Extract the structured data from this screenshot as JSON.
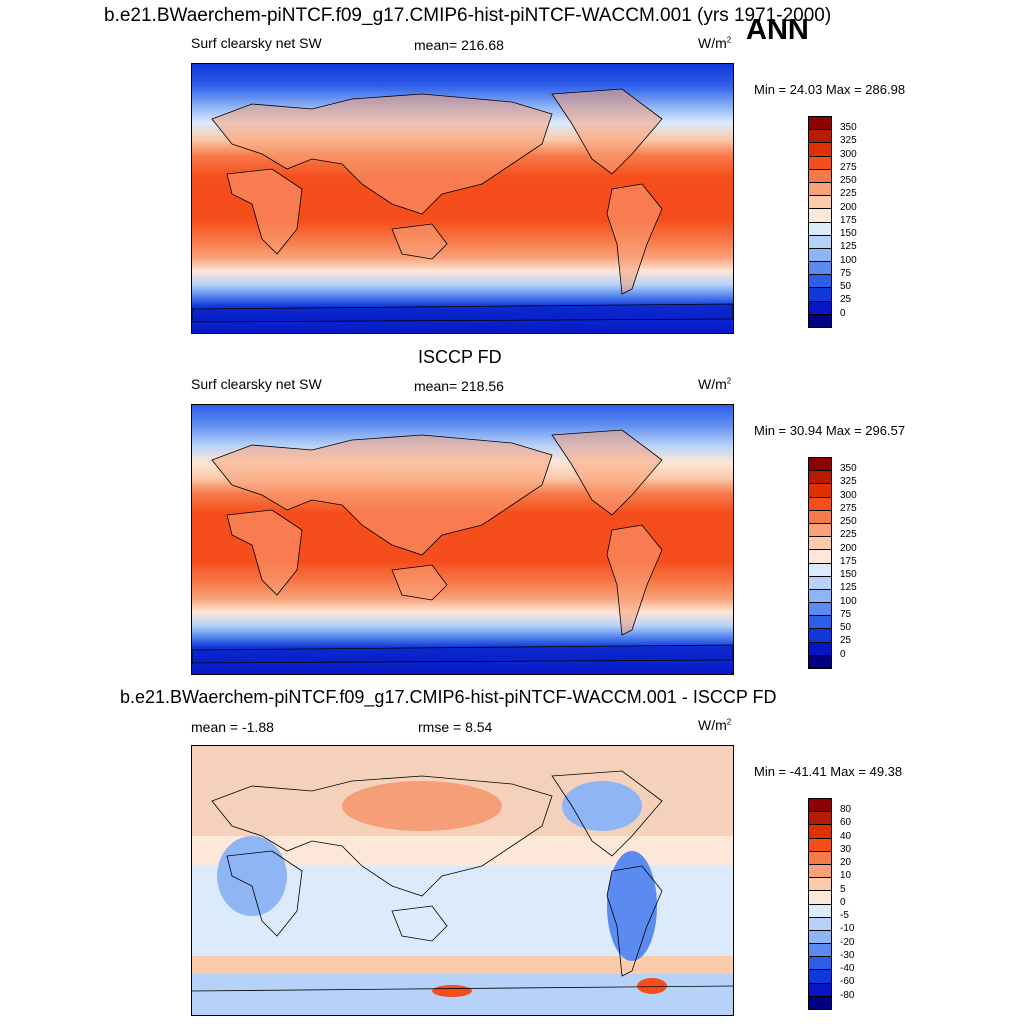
{
  "figure": {
    "title": "b.e21.BWaerchem-piNTCF.f09_g17.CMIP6-hist-piNTCF-WACCM.001 (yrs 1971-2000)",
    "season": "ANN"
  },
  "panel1": {
    "variable": "Surf clearsky net SW",
    "mean": "mean= 216.68",
    "units": "W/m",
    "units_sup": "2",
    "minmax": "Min =  24.03 Max = 286.98",
    "colorbar_labels": [
      "350",
      "325",
      "300",
      "275",
      "250",
      "225",
      "200",
      "175",
      "150",
      "125",
      "100",
      "75",
      "50",
      "25",
      "0"
    ]
  },
  "panel2": {
    "title": "ISCCP FD",
    "variable": "Surf clearsky net SW",
    "mean": "mean= 218.56",
    "units": "W/m",
    "units_sup": "2",
    "minmax": "Min =  30.94 Max = 296.57",
    "colorbar_labels": [
      "350",
      "325",
      "300",
      "275",
      "250",
      "225",
      "200",
      "175",
      "150",
      "125",
      "100",
      "75",
      "50",
      "25",
      "0"
    ]
  },
  "panel3": {
    "title": "b.e21.BWaerchem-piNTCF.f09_g17.CMIP6-hist-piNTCF-WACCM.001 - ISCCP FD",
    "mean": "mean =  -1.88",
    "rmse": "rmse =   8.54",
    "units": "W/m",
    "units_sup": "2",
    "minmax": "Min = -41.41 Max =  49.38",
    "colorbar_labels": [
      "80",
      "60",
      "40",
      "30",
      "20",
      "10",
      "5",
      "0",
      "-5",
      "-10",
      "-20",
      "-30",
      "-40",
      "-60",
      "-80"
    ]
  },
  "colors": {
    "abs_scale": [
      "#8b0000",
      "#b71c00",
      "#e03200",
      "#f54e1c",
      "#f77b4a",
      "#f9a27a",
      "#fbcbab",
      "#fde7d8",
      "#dcebfc",
      "#b6d2f9",
      "#8fb5f5",
      "#5b8bf0",
      "#2d5ee8",
      "#1038d8",
      "#0616c4",
      "#000080"
    ],
    "diff_scale": [
      "#8b0000",
      "#b71c00",
      "#e03200",
      "#f54e1c",
      "#f77b4a",
      "#f9a27a",
      "#fbcbab",
      "#fde7d8",
      "#dcebfc",
      "#b6d2f9",
      "#8fb5f5",
      "#5b8bf0",
      "#2d5ee8",
      "#1038d8",
      "#0616c4",
      "#000080"
    ]
  }
}
